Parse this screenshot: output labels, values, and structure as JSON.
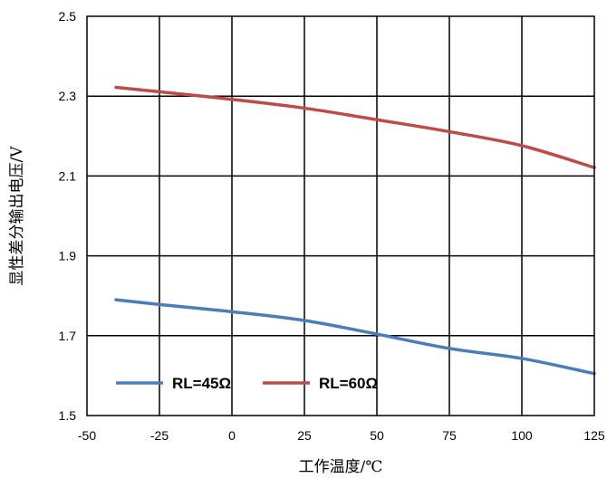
{
  "chart_data": {
    "type": "line",
    "xlabel": "工作温度/℃",
    "ylabel": "显性差分输出电压/V",
    "xlim": [
      -50,
      125
    ],
    "ylim": [
      1.5,
      2.5
    ],
    "xticks": [
      -50,
      -25,
      0,
      25,
      50,
      75,
      100,
      125
    ],
    "yticks": [
      1.5,
      1.7,
      1.9,
      2.1,
      2.3,
      2.5
    ],
    "xtick_labels": [
      "-50",
      "-25",
      "0",
      "25",
      "50",
      "75",
      "100",
      "125"
    ],
    "ytick_labels": [
      "1.5",
      "1.7",
      "1.9",
      "2.1",
      "2.3",
      "2.5"
    ],
    "grid": true,
    "legend_position": "bottom-left",
    "series": [
      {
        "name": "RL=45Ω",
        "color": "#4a7ebb",
        "x": [
          -40,
          -25,
          0,
          25,
          50,
          75,
          100,
          125
        ],
        "y": [
          1.79,
          1.778,
          1.76,
          1.738,
          1.704,
          1.668,
          1.643,
          1.605
        ]
      },
      {
        "name": "RL=60Ω",
        "color": "#be4b48",
        "x": [
          -40,
          -25,
          0,
          25,
          50,
          75,
          100,
          125
        ],
        "y": [
          2.322,
          2.311,
          2.292,
          2.27,
          2.241,
          2.211,
          2.176,
          2.121
        ]
      }
    ]
  }
}
